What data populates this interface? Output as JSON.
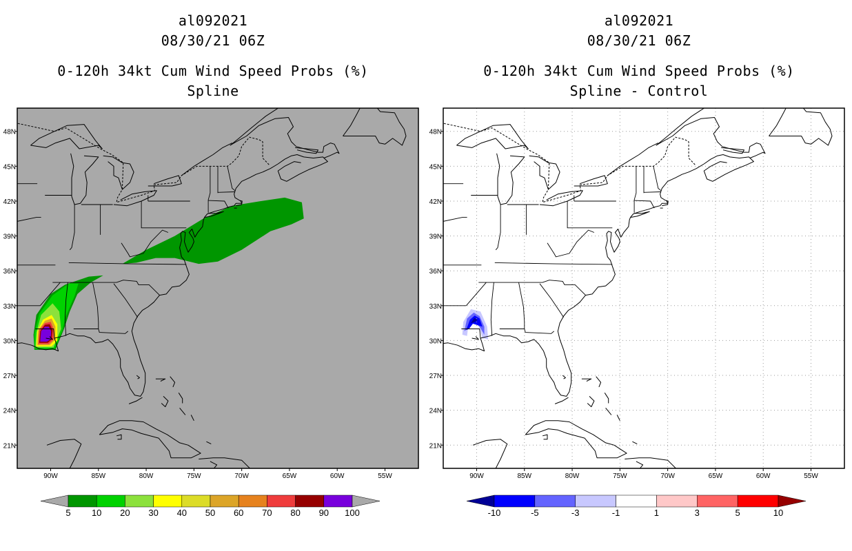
{
  "chart_data": [
    {
      "type": "heatmap",
      "id": "al092021",
      "title_lines": [
        "al092021",
        "08/30/21 06Z",
        "0-120h 34kt Cum Wind Speed Probs (%)",
        "Spline"
      ],
      "xlim": [
        -93.5,
        -51.5
      ],
      "ylim": [
        19,
        50
      ],
      "x_ticks": [
        "90W",
        "85W",
        "80W",
        "75W",
        "70W",
        "65W",
        "60W",
        "55W"
      ],
      "x_tick_values": [
        -90,
        -85,
        -80,
        -75,
        -70,
        -65,
        -60,
        -55
      ],
      "y_ticks": [
        "48N",
        "45N",
        "42N",
        "39N",
        "36N",
        "33N",
        "30N",
        "27N",
        "24N",
        "21N"
      ],
      "y_tick_values": [
        48,
        45,
        42,
        39,
        36,
        33,
        30,
        27,
        24,
        21
      ],
      "background": "#a9a9a9",
      "grid": false,
      "colorbar": {
        "labels": [
          "5",
          "10",
          "20",
          "30",
          "40",
          "50",
          "60",
          "70",
          "80",
          "90",
          "100"
        ],
        "colors": [
          "#009600",
          "#00d200",
          "#8ce13c",
          "#ffff00",
          "#dcdc28",
          "#dca528",
          "#e6821e",
          "#ef3c3c",
          "#960000",
          "#7800dc"
        ],
        "under_color": "#a9a9a9",
        "over_color": "#a9a9a9"
      },
      "regions": [
        {
          "level": 5,
          "color": "#009600",
          "points": [
            [
              -82.5,
              36.6
            ],
            [
              -80,
              37.8
            ],
            [
              -77,
              39
            ],
            [
              -74,
              40.5
            ],
            [
              -71,
              41.6
            ],
            [
              -68,
              42
            ],
            [
              -65.5,
              42.3
            ],
            [
              -63.7,
              41.9
            ],
            [
              -63.5,
              40.5
            ],
            [
              -64.8,
              40
            ],
            [
              -67,
              39.4
            ],
            [
              -70,
              37.8
            ],
            [
              -72.5,
              36.8
            ],
            [
              -74.5,
              36.6
            ],
            [
              -77,
              37.1
            ],
            [
              -79,
              37.1
            ],
            [
              -81,
              36.7
            ]
          ]
        },
        {
          "level": 5,
          "color": "#009600",
          "points": [
            [
              -91.7,
              29.2
            ],
            [
              -91.8,
              30.5
            ],
            [
              -91.5,
              32.2
            ],
            [
              -90,
              34
            ],
            [
              -88.5,
              34.8
            ],
            [
              -86,
              35.5
            ],
            [
              -84.5,
              35.6
            ],
            [
              -85.8,
              35
            ],
            [
              -87.2,
              34
            ],
            [
              -88,
              32.5
            ],
            [
              -88.6,
              31
            ],
            [
              -89.5,
              29.2
            ]
          ]
        },
        {
          "level": 10,
          "color": "#00d200",
          "points": [
            [
              -91.7,
              29.3
            ],
            [
              -91.7,
              30.6
            ],
            [
              -91.2,
              32.3
            ],
            [
              -89.8,
              33.9
            ],
            [
              -88.1,
              34.9
            ],
            [
              -87.1,
              34.9
            ],
            [
              -87.5,
              33.8
            ],
            [
              -88.4,
              32.1
            ],
            [
              -88.8,
              30.8
            ],
            [
              -89.6,
              29.3
            ]
          ]
        },
        {
          "level": 20,
          "color": "#8ce13c",
          "points": [
            [
              -91.6,
              29.4
            ],
            [
              -91.5,
              30.7
            ],
            [
              -91,
              32.2
            ],
            [
              -89.8,
              33.2
            ],
            [
              -89.1,
              32.5
            ],
            [
              -88.9,
              31
            ],
            [
              -89.7,
              29.4
            ]
          ]
        },
        {
          "level": 30,
          "color": "#ffff00",
          "points": [
            [
              -91.5,
              29.5
            ],
            [
              -91.4,
              30.8
            ],
            [
              -90.8,
              31.8
            ],
            [
              -89.9,
              32.2
            ],
            [
              -89.3,
              31.4
            ],
            [
              -89.3,
              30
            ],
            [
              -89.9,
              29.5
            ]
          ]
        },
        {
          "level": 50,
          "color": "#dca528",
          "points": [
            [
              -91.4,
              29.6
            ],
            [
              -91.3,
              30.9
            ],
            [
              -90.6,
              31.7
            ],
            [
              -89.9,
              31.9
            ],
            [
              -89.5,
              31.2
            ],
            [
              -89.5,
              30.1
            ],
            [
              -90.1,
              29.6
            ]
          ]
        },
        {
          "level": 70,
          "color": "#ef3c3c",
          "points": [
            [
              -91.3,
              29.7
            ],
            [
              -91.2,
              30.9
            ],
            [
              -90.6,
              31.5
            ],
            [
              -90,
              31.6
            ],
            [
              -89.7,
              31
            ],
            [
              -89.7,
              30.1
            ],
            [
              -90.2,
              29.7
            ]
          ]
        },
        {
          "level": 90,
          "color": "#960000",
          "points": [
            [
              -91.2,
              29.8
            ],
            [
              -91.1,
              30.8
            ],
            [
              -90.6,
              31.35
            ],
            [
              -90.1,
              31.4
            ],
            [
              -89.8,
              30.9
            ],
            [
              -89.9,
              30.1
            ],
            [
              -90.3,
              29.8
            ]
          ]
        },
        {
          "level": 100,
          "color": "#7800dc",
          "points": [
            [
              -91.1,
              29.9
            ],
            [
              -91,
              30.8
            ],
            [
              -90.6,
              31.2
            ],
            [
              -90.2,
              31.2
            ],
            [
              -89.95,
              30.8
            ],
            [
              -90,
              30.1
            ],
            [
              -90.4,
              29.9
            ]
          ]
        }
      ]
    },
    {
      "type": "heatmap",
      "id": "al092021",
      "title_lines": [
        "al092021",
        "08/30/21 06Z",
        "0-120h 34kt Cum Wind Speed Probs (%)",
        "Spline - Control"
      ],
      "xlim": [
        -93.5,
        -51.5
      ],
      "ylim": [
        19,
        50
      ],
      "x_ticks": [
        "90W",
        "85W",
        "80W",
        "75W",
        "70W",
        "65W",
        "60W",
        "55W"
      ],
      "x_tick_values": [
        -90,
        -85,
        -80,
        -75,
        -70,
        -65,
        -60,
        -55
      ],
      "y_ticks": [
        "48N",
        "45N",
        "42N",
        "39N",
        "36N",
        "33N",
        "30N",
        "27N",
        "24N",
        "21N"
      ],
      "y_tick_values": [
        48,
        45,
        42,
        39,
        36,
        33,
        30,
        27,
        24,
        21
      ],
      "background": "#ffffff",
      "grid": true,
      "colorbar": {
        "labels": [
          "-10",
          "-5",
          "-3",
          "-1",
          "1",
          "3",
          "5",
          "10"
        ],
        "colors": [
          "#0000ff",
          "#6464ff",
          "#c8c8ff",
          "#ffffff",
          "#ffc8c8",
          "#ff6464",
          "#ff0000"
        ],
        "under_color": "#000096",
        "over_color": "#960000"
      },
      "regions": [
        {
          "level": -1,
          "color": "#c8c8ff",
          "points": [
            [
              -91.5,
              30.5
            ],
            [
              -91.4,
              31.6
            ],
            [
              -90.6,
              32.7
            ],
            [
              -89.6,
              32.5
            ],
            [
              -88.9,
              31.2
            ],
            [
              -88.8,
              30.1
            ],
            [
              -89.4,
              30.2
            ],
            [
              -89.8,
              31.3
            ],
            [
              -90.5,
              31.7
            ],
            [
              -90.9,
              31.1
            ],
            [
              -91,
              30.4
            ]
          ]
        },
        {
          "level": -3,
          "color": "#6464ff",
          "points": [
            [
              -91.3,
              30.8
            ],
            [
              -91,
              31.9
            ],
            [
              -90.3,
              32.4
            ],
            [
              -89.7,
              32.1
            ],
            [
              -89.2,
              31.2
            ],
            [
              -89.2,
              30.5
            ],
            [
              -89.7,
              31.2
            ],
            [
              -90.4,
              31.6
            ],
            [
              -90.8,
              31.1
            ]
          ]
        },
        {
          "level": -5,
          "color": "#0000ff",
          "points": [
            [
              -91.1,
              30.9
            ],
            [
              -90.7,
              31.8
            ],
            [
              -90.2,
              32.15
            ],
            [
              -89.7,
              31.9
            ],
            [
              -89.4,
              31.2
            ],
            [
              -89.8,
              31.3
            ],
            [
              -90.4,
              31.45
            ],
            [
              -90.8,
              31
            ]
          ]
        },
        {
          "level": -10,
          "color": "#000096",
          "points": [
            [
              -90.6,
              31.5
            ],
            [
              -90.25,
              31.95
            ],
            [
              -89.9,
              31.75
            ],
            [
              -90.3,
              31.55
            ]
          ]
        }
      ]
    }
  ]
}
